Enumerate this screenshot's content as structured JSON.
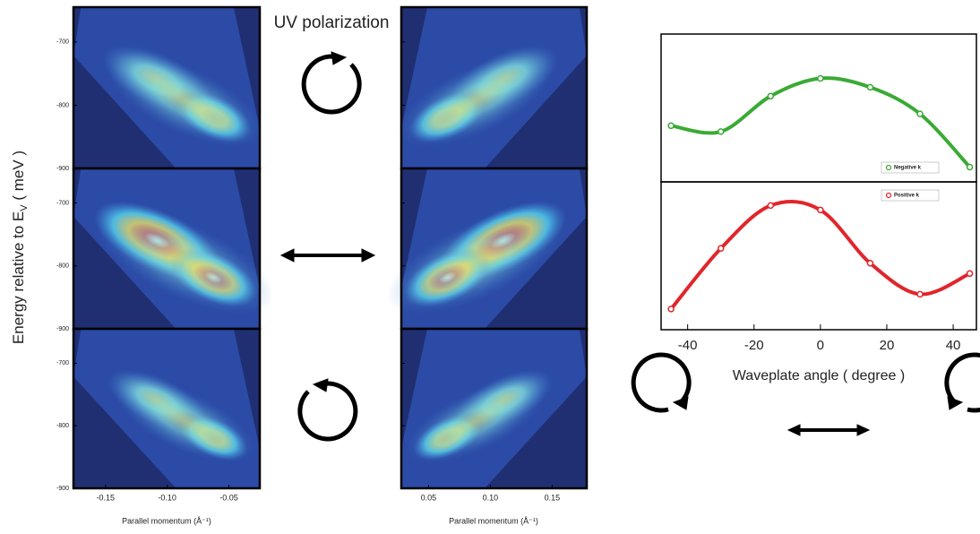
{
  "chart_data": [
    {
      "type": "arpes",
      "title": "UV polarization",
      "ylabel": [
        "Energy relative to E",
        "V",
        " ( meV )"
      ],
      "xlabel": "Parallel momentum  (Å⁻¹)",
      "ylim": [
        -900,
        -645
      ],
      "yticks": [
        -700,
        -800,
        -900
      ],
      "left_xlim": [
        -0.176,
        -0.025
      ],
      "left_xticks": [
        -0.15,
        {
          "value": -0.1,
          "label": "-0.10"
        },
        -0.05
      ],
      "right_xlim": [
        0.028,
        0.178
      ],
      "right_xticks": [
        0.05,
        {
          "value": 0.1,
          "label": "0.10"
        },
        0.15
      ]
    },
    {
      "type": "line",
      "xlabel": "Waveplate angle  ( degree )",
      "x": [
        -45,
        -30,
        -15,
        0,
        15,
        30,
        45
      ],
      "xlim": [
        -48,
        47
      ],
      "xticks": [
        -40,
        -20,
        0,
        20,
        40
      ],
      "ylim": [
        0,
        1
      ],
      "series": [
        {
          "name": "Negative k",
          "color": "#3aaa35",
          "values": [
            0.38,
            0.34,
            0.58,
            0.7,
            0.64,
            0.46,
            0.1
          ]
        },
        {
          "name": "Positive k",
          "color": "#e0262b",
          "values": [
            0.14,
            0.55,
            0.84,
            0.81,
            0.45,
            0.24,
            0.38
          ]
        }
      ]
    }
  ]
}
